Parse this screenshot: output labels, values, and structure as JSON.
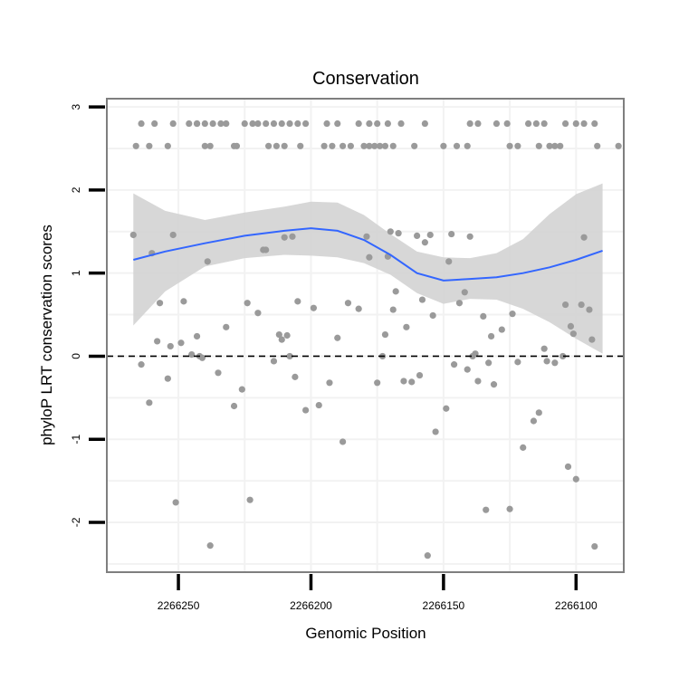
{
  "chart_data": {
    "type": "scatter",
    "title": "Conservation",
    "xlabel": "Genomic Position",
    "ylabel": "phyloP LRT conservation scores",
    "x_axis_reversed": true,
    "xlim": [
      2266277,
      2266082
    ],
    "ylim": [
      -2.6,
      3.1
    ],
    "x_ticks": [
      2266250,
      2266200,
      2266150,
      2266100
    ],
    "x_tick_labels": [
      "2266250",
      "2266200",
      "2266150",
      "2266100"
    ],
    "y_ticks": [
      -2,
      -1,
      0,
      1,
      2,
      3
    ],
    "y_tick_labels": [
      "-2",
      "-1",
      "0",
      "1",
      "2",
      "3"
    ],
    "grid": true,
    "legend": "none",
    "reference_line": {
      "y": 0,
      "style": "dashed",
      "color": "#000000"
    },
    "colors": {
      "points": "#9a9a9a",
      "smooth": "#3366ff",
      "ribbon": "#d3d3d3",
      "panel_border": "#7f7f7f",
      "grid": "#f2f2f2"
    },
    "smooth": {
      "x": [
        2266267,
        2266255,
        2266240,
        2266225,
        2266210,
        2266200,
        2266190,
        2266180,
        2266170,
        2266160,
        2266150,
        2266140,
        2266130,
        2266120,
        2266110,
        2266100,
        2266090
      ],
      "y": [
        1.16,
        1.26,
        1.36,
        1.45,
        1.51,
        1.54,
        1.51,
        1.4,
        1.22,
        1.0,
        0.91,
        0.93,
        0.95,
        1.0,
        1.07,
        1.16,
        1.27
      ],
      "lower": [
        0.37,
        0.78,
        1.08,
        1.18,
        1.22,
        1.21,
        1.19,
        1.12,
        0.98,
        0.76,
        0.63,
        0.69,
        0.68,
        0.57,
        0.41,
        0.21,
        0.03
      ],
      "upper": [
        1.96,
        1.75,
        1.64,
        1.73,
        1.8,
        1.86,
        1.85,
        1.7,
        1.47,
        1.26,
        1.19,
        1.18,
        1.24,
        1.41,
        1.71,
        1.95,
        2.08
      ]
    },
    "points": [
      [
        2266266,
        2.53
      ],
      [
        2266264,
        2.8
      ],
      [
        2266259,
        2.8
      ],
      [
        2266261,
        2.53
      ],
      [
        2266254,
        2.53
      ],
      [
        2266252,
        2.8
      ],
      [
        2266246,
        2.8
      ],
      [
        2266243,
        2.8
      ],
      [
        2266240,
        2.8
      ],
      [
        2266237,
        2.8
      ],
      [
        2266234,
        2.8
      ],
      [
        2266232,
        2.8
      ],
      [
        2266240,
        2.53
      ],
      [
        2266238,
        2.53
      ],
      [
        2266229,
        2.53
      ],
      [
        2266228,
        2.53
      ],
      [
        2266225,
        2.8
      ],
      [
        2266222,
        2.8
      ],
      [
        2266220,
        2.8
      ],
      [
        2266217,
        2.8
      ],
      [
        2266214,
        2.8
      ],
      [
        2266211,
        2.8
      ],
      [
        2266208,
        2.8
      ],
      [
        2266205,
        2.8
      ],
      [
        2266202,
        2.8
      ],
      [
        2266216,
        2.53
      ],
      [
        2266213,
        2.53
      ],
      [
        2266210,
        2.53
      ],
      [
        2266204,
        2.53
      ],
      [
        2266194,
        2.8
      ],
      [
        2266190,
        2.8
      ],
      [
        2266182,
        2.8
      ],
      [
        2266178,
        2.8
      ],
      [
        2266175,
        2.8
      ],
      [
        2266171,
        2.8
      ],
      [
        2266166,
        2.8
      ],
      [
        2266157,
        2.8
      ],
      [
        2266195,
        2.53
      ],
      [
        2266192,
        2.53
      ],
      [
        2266188,
        2.53
      ],
      [
        2266185,
        2.53
      ],
      [
        2266180,
        2.53
      ],
      [
        2266178,
        2.53
      ],
      [
        2266176,
        2.53
      ],
      [
        2266174,
        2.53
      ],
      [
        2266172,
        2.53
      ],
      [
        2266169,
        2.53
      ],
      [
        2266161,
        2.53
      ],
      [
        2266150,
        2.53
      ],
      [
        2266145,
        2.53
      ],
      [
        2266141,
        2.53
      ],
      [
        2266140,
        2.8
      ],
      [
        2266137,
        2.8
      ],
      [
        2266130,
        2.8
      ],
      [
        2266126,
        2.8
      ],
      [
        2266125,
        2.53
      ],
      [
        2266122,
        2.53
      ],
      [
        2266118,
        2.8
      ],
      [
        2266115,
        2.8
      ],
      [
        2266112,
        2.8
      ],
      [
        2266108,
        2.53
      ],
      [
        2266106,
        2.53
      ],
      [
        2266104,
        2.8
      ],
      [
        2266100,
        2.8
      ],
      [
        2266097,
        2.8
      ],
      [
        2266093,
        2.8
      ],
      [
        2266092,
        2.53
      ],
      [
        2266084,
        2.53
      ],
      [
        2266114,
        2.53
      ],
      [
        2266110,
        2.53
      ],
      [
        2266267,
        1.46
      ],
      [
        2266264,
        -0.1
      ],
      [
        2266261,
        -0.56
      ],
      [
        2266260,
        1.24
      ],
      [
        2266258,
        0.18
      ],
      [
        2266257,
        0.64
      ],
      [
        2266254,
        -0.27
      ],
      [
        2266253,
        0.12
      ],
      [
        2266252,
        1.46
      ],
      [
        2266251,
        -1.76
      ],
      [
        2266249,
        0.16
      ],
      [
        2266248,
        0.66
      ],
      [
        2266243,
        2.8
      ],
      [
        2266245,
        0.02
      ],
      [
        2266243,
        0.24
      ],
      [
        2266242,
        0.0
      ],
      [
        2266241,
        -0.02
      ],
      [
        2266239,
        1.14
      ],
      [
        2266238,
        -2.28
      ],
      [
        2266235,
        -0.2
      ],
      [
        2266232,
        0.35
      ],
      [
        2266229,
        -0.6
      ],
      [
        2266226,
        -0.4
      ],
      [
        2266224,
        0.64
      ],
      [
        2266223,
        -1.73
      ],
      [
        2266220,
        0.52
      ],
      [
        2266218,
        1.28
      ],
      [
        2266217,
        1.28
      ],
      [
        2266214,
        -0.06
      ],
      [
        2266212,
        0.26
      ],
      [
        2266211,
        0.2
      ],
      [
        2266210,
        1.43
      ],
      [
        2266209,
        0.25
      ],
      [
        2266208,
        0.0
      ],
      [
        2266207,
        1.44
      ],
      [
        2266206,
        -0.25
      ],
      [
        2266205,
        0.66
      ],
      [
        2266202,
        -0.65
      ],
      [
        2266199,
        0.58
      ],
      [
        2266197,
        -0.59
      ],
      [
        2266193,
        -0.32
      ],
      [
        2266190,
        0.22
      ],
      [
        2266188,
        -1.03
      ],
      [
        2266186,
        0.64
      ],
      [
        2266182,
        0.57
      ],
      [
        2266179,
        1.44
      ],
      [
        2266178,
        1.19
      ],
      [
        2266175,
        -0.32
      ],
      [
        2266173,
        0.0
      ],
      [
        2266172,
        0.26
      ],
      [
        2266171,
        1.2
      ],
      [
        2266170,
        1.5
      ],
      [
        2266169,
        0.56
      ],
      [
        2266168,
        0.78
      ],
      [
        2266167,
        1.48
      ],
      [
        2266165,
        -0.3
      ],
      [
        2266164,
        0.35
      ],
      [
        2266162,
        -0.31
      ],
      [
        2266160,
        1.45
      ],
      [
        2266159,
        -0.23
      ],
      [
        2266158,
        0.68
      ],
      [
        2266157,
        1.37
      ],
      [
        2266156,
        -2.4
      ],
      [
        2266155,
        1.46
      ],
      [
        2266154,
        0.49
      ],
      [
        2266153,
        -0.91
      ],
      [
        2266149,
        -0.63
      ],
      [
        2266148,
        1.14
      ],
      [
        2266147,
        1.47
      ],
      [
        2266146,
        -0.1
      ],
      [
        2266144,
        0.64
      ],
      [
        2266142,
        0.77
      ],
      [
        2266141,
        -0.16
      ],
      [
        2266140,
        1.44
      ],
      [
        2266139,
        0.0
      ],
      [
        2266138,
        0.03
      ],
      [
        2266137,
        -0.3
      ],
      [
        2266135,
        0.48
      ],
      [
        2266134,
        -1.85
      ],
      [
        2266133,
        -0.08
      ],
      [
        2266132,
        0.24
      ],
      [
        2266131,
        -0.34
      ],
      [
        2266128,
        0.32
      ],
      [
        2266125,
        -1.84
      ],
      [
        2266124,
        0.51
      ],
      [
        2266122,
        -0.07
      ],
      [
        2266120,
        -1.1
      ],
      [
        2266116,
        -0.78
      ],
      [
        2266114,
        -0.68
      ],
      [
        2266112,
        0.09
      ],
      [
        2266111,
        -0.06
      ],
      [
        2266108,
        -0.08
      ],
      [
        2266105,
        0.0
      ],
      [
        2266104,
        0.62
      ],
      [
        2266103,
        -1.33
      ],
      [
        2266102,
        0.36
      ],
      [
        2266101,
        0.27
      ],
      [
        2266100,
        -1.48
      ],
      [
        2266098,
        0.62
      ],
      [
        2266097,
        1.43
      ],
      [
        2266095,
        0.56
      ],
      [
        2266094,
        0.2
      ],
      [
        2266093,
        -2.29
      ]
    ]
  }
}
